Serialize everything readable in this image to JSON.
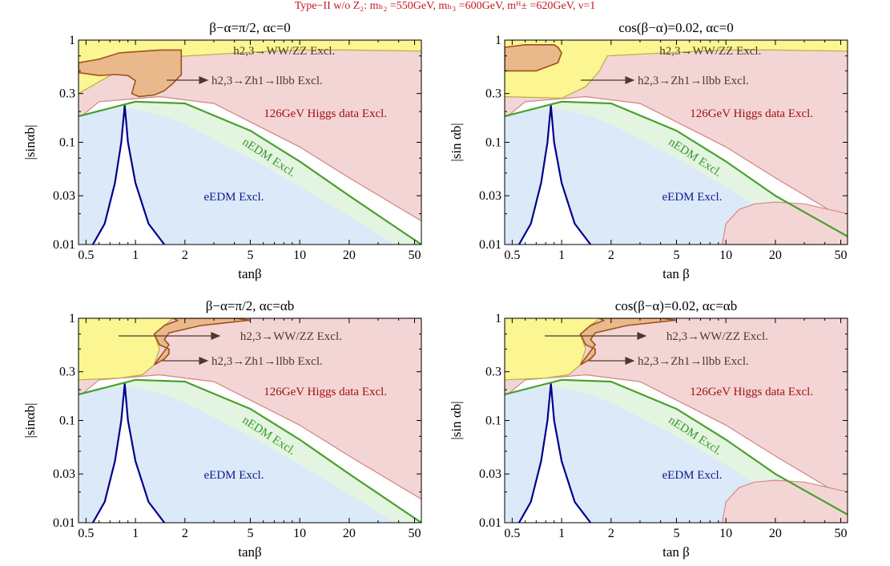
{
  "figure_title": "Type−II w/o Z₂: mₕ₂ =550GeV, mₕ₃ =600GeV, mᴴ± =620GeV, ν=1",
  "colors": {
    "eEDM_fill": "#dce9f8",
    "nEDM_fill": "#e3f5e0",
    "higgs_fill": "#f4d5d5",
    "wwzz_fill": "#fbf592",
    "zh_fill": "#e9b98b",
    "eEDM_line": "#00008c",
    "nEDM_line": "#4aa02c",
    "higgs_line": "#d28a8a",
    "zh_line": "#a0501e",
    "wwzz_line": "#b8b042",
    "eEDM_text": "#0b1a8c",
    "nEDM_text": "#3c9630",
    "higgs_text": "#a01010",
    "arrow_text": "#4b3a2a"
  },
  "chart_data": [
    {
      "type": "area",
      "title": "β−α=π/2, αc=0",
      "xlabel": "tanβ",
      "ylabel": "|sinαb|",
      "x_scale": "log",
      "y_scale": "log",
      "xlim": [
        0.45,
        55
      ],
      "ylim": [
        0.01,
        1
      ],
      "xticks": [
        "0.5",
        "1",
        "2",
        "5",
        "10",
        "20",
        "50"
      ],
      "yticks": [
        "0.01",
        "0.03",
        "0.1",
        "0.3",
        "1"
      ],
      "labels": {
        "wwzz": "h2,3→WW/ZZ Excl.",
        "zh": "h2,3→Zh1→llbb Excl.",
        "higgs": "126GeV Higgs data Excl.",
        "nedm": "nEDM Excl.",
        "eedm": "eEDM Excl."
      },
      "regions": {
        "eEDM_boundary": [
          [
            0.45,
            0.18
          ],
          [
            0.6,
            0.2
          ],
          [
            0.8,
            0.215
          ],
          [
            1.0,
            0.21
          ],
          [
            1.5,
            0.18
          ],
          [
            2,
            0.15
          ],
          [
            5,
            0.07
          ],
          [
            10,
            0.037
          ],
          [
            20,
            0.019
          ],
          [
            40,
            0.0095
          ]
        ],
        "nEDM_boundary": [
          [
            0.45,
            0.18
          ],
          [
            1,
            0.25
          ],
          [
            2,
            0.24
          ],
          [
            5,
            0.13
          ],
          [
            10,
            0.065
          ],
          [
            20,
            0.03
          ],
          [
            55,
            0.01
          ]
        ],
        "higgs_boundary": [
          [
            0.45,
            0.17
          ],
          [
            0.6,
            0.25
          ],
          [
            1.4,
            0.28
          ],
          [
            3,
            0.24
          ],
          [
            10,
            0.09
          ],
          [
            20,
            0.045
          ],
          [
            55,
            0.017
          ]
        ],
        "wwzz_boundary": [
          [
            0.45,
            0.3
          ],
          [
            0.7,
            0.45
          ],
          [
            0.8,
            0.5
          ],
          [
            0.9,
            0.52
          ],
          [
            1,
            0.53
          ],
          [
            1.5,
            0.62
          ],
          [
            1.7,
            0.68
          ],
          [
            1.8,
            0.69
          ],
          [
            5,
            0.76
          ],
          [
            10,
            0.8
          ],
          [
            20,
            0.8
          ],
          [
            55,
            0.78
          ]
        ],
        "zh_region": [
          [
            0.45,
            0.48
          ],
          [
            0.6,
            0.45
          ],
          [
            0.75,
            0.46
          ],
          [
            0.9,
            0.45
          ],
          [
            1.0,
            0.4
          ],
          [
            0.95,
            0.3
          ],
          [
            1.05,
            0.28
          ],
          [
            1.3,
            0.29
          ],
          [
            1.5,
            0.32
          ],
          [
            1.7,
            0.38
          ],
          [
            1.9,
            0.46
          ],
          [
            1.9,
            0.8
          ],
          [
            1.4,
            0.8
          ],
          [
            0.8,
            0.75
          ],
          [
            0.6,
            0.65
          ],
          [
            0.45,
            0.6
          ]
        ],
        "eEDM_excl_curve": [
          [
            0.55,
            0.01
          ],
          [
            0.65,
            0.016
          ],
          [
            0.75,
            0.04
          ],
          [
            0.82,
            0.1
          ],
          [
            0.86,
            0.23
          ],
          [
            0.9,
            0.1
          ],
          [
            1.0,
            0.04
          ],
          [
            1.2,
            0.016
          ],
          [
            1.5,
            0.01
          ]
        ]
      }
    },
    {
      "type": "area",
      "title": "cos(β−α)=0.02, αc=0",
      "xlabel": "tan β",
      "ylabel": "|sin αb|",
      "x_scale": "log",
      "y_scale": "log",
      "xlim": [
        0.45,
        55
      ],
      "ylim": [
        0.01,
        1
      ],
      "xticks": [
        "0.5",
        "1",
        "2",
        "5",
        "10",
        "20",
        "50"
      ],
      "yticks": [
        "0.01",
        "0.03",
        "0.1",
        "0.3",
        "1"
      ],
      "labels": {
        "wwzz": "h2,3→WW/ZZ Excl.",
        "zh": "h2,3→Zh1→llbb Excl.",
        "higgs": "126GeV Higgs data Excl.",
        "nedm": "nEDM Excl.",
        "eedm": "eEDM Excl."
      },
      "regions": {
        "eEDM_boundary": [
          [
            0.45,
            0.18
          ],
          [
            0.6,
            0.2
          ],
          [
            0.8,
            0.215
          ],
          [
            1.0,
            0.21
          ],
          [
            1.5,
            0.18
          ],
          [
            2,
            0.15
          ],
          [
            5,
            0.07
          ],
          [
            10,
            0.037
          ],
          [
            13,
            0.028
          ],
          [
            20,
            0.019
          ],
          [
            55,
            0.01
          ]
        ],
        "nEDM_boundary": [
          [
            0.45,
            0.18
          ],
          [
            1,
            0.25
          ],
          [
            2,
            0.24
          ],
          [
            5,
            0.13
          ],
          [
            10,
            0.065
          ],
          [
            20,
            0.03
          ],
          [
            55,
            0.012
          ]
        ],
        "higgs_boundary": [
          [
            0.45,
            0.17
          ],
          [
            0.6,
            0.25
          ],
          [
            1.4,
            0.28
          ],
          [
            3,
            0.24
          ],
          [
            10,
            0.09
          ],
          [
            20,
            0.045
          ],
          [
            55,
            0.017
          ]
        ],
        "wwzz_boundary": [
          [
            0.45,
            0.28
          ],
          [
            1,
            0.27
          ],
          [
            1.4,
            0.35
          ],
          [
            1.7,
            0.5
          ],
          [
            1.8,
            0.6
          ],
          [
            1.9,
            0.7
          ],
          [
            5,
            0.76
          ],
          [
            10,
            0.8
          ],
          [
            20,
            0.8
          ],
          [
            55,
            0.78
          ]
        ],
        "zh_region": [
          [
            0.45,
            0.5
          ],
          [
            0.7,
            0.5
          ],
          [
            0.95,
            0.6
          ],
          [
            1.0,
            0.75
          ],
          [
            0.95,
            0.85
          ],
          [
            0.9,
            0.9
          ],
          [
            0.6,
            0.9
          ],
          [
            0.45,
            0.85
          ]
        ],
        "eEDM_excl_curve": [
          [
            0.55,
            0.01
          ],
          [
            0.65,
            0.016
          ],
          [
            0.75,
            0.04
          ],
          [
            0.82,
            0.1
          ],
          [
            0.86,
            0.23
          ],
          [
            0.9,
            0.1
          ],
          [
            1.0,
            0.04
          ],
          [
            1.2,
            0.016
          ],
          [
            1.5,
            0.01
          ]
        ],
        "higgs_island": [
          [
            9.5,
            0.01
          ],
          [
            10,
            0.016
          ],
          [
            12,
            0.022
          ],
          [
            15,
            0.025
          ],
          [
            20,
            0.026
          ],
          [
            30,
            0.025
          ],
          [
            55,
            0.02
          ],
          [
            55,
            0.01
          ]
        ]
      }
    },
    {
      "type": "area",
      "title": "β−α=π/2, αc=αb",
      "xlabel": "tanβ",
      "ylabel": "|sinαb|",
      "x_scale": "log",
      "y_scale": "log",
      "xlim": [
        0.45,
        55
      ],
      "ylim": [
        0.01,
        1
      ],
      "xticks": [
        "0.5",
        "1",
        "2",
        "5",
        "10",
        "20",
        "50"
      ],
      "yticks": [
        "0.01",
        "0.03",
        "0.1",
        "0.3",
        "1"
      ],
      "labels": {
        "wwzz": "h2,3→WW/ZZ Excl.",
        "zh": "h2,3→Zh1→llbb Excl.",
        "higgs": "126GeV Higgs data Excl.",
        "nedm": "nEDM Excl.",
        "eedm": "eEDM Excl."
      },
      "regions": {
        "eEDM_boundary": [
          [
            0.45,
            0.18
          ],
          [
            0.6,
            0.2
          ],
          [
            0.8,
            0.215
          ],
          [
            1.0,
            0.21
          ],
          [
            1.5,
            0.18
          ],
          [
            2,
            0.15
          ],
          [
            5,
            0.07
          ],
          [
            10,
            0.037
          ],
          [
            20,
            0.019
          ],
          [
            40,
            0.0095
          ]
        ],
        "nEDM_boundary": [
          [
            0.45,
            0.18
          ],
          [
            1,
            0.25
          ],
          [
            2,
            0.24
          ],
          [
            5,
            0.13
          ],
          [
            10,
            0.065
          ],
          [
            20,
            0.03
          ],
          [
            55,
            0.01
          ]
        ],
        "higgs_boundary": [
          [
            0.45,
            0.17
          ],
          [
            0.6,
            0.25
          ],
          [
            1.4,
            0.28
          ],
          [
            3,
            0.24
          ],
          [
            10,
            0.09
          ],
          [
            20,
            0.045
          ],
          [
            55,
            0.017
          ]
        ],
        "wwzz_boundary": [
          [
            0.45,
            0.25
          ],
          [
            0.8,
            0.26
          ],
          [
            1.1,
            0.28
          ],
          [
            1.3,
            0.35
          ],
          [
            1.4,
            0.5
          ],
          [
            1.3,
            0.7
          ],
          [
            1.5,
            0.85
          ],
          [
            1.7,
            1
          ]
        ],
        "zh_region": [
          [
            1.3,
            0.35
          ],
          [
            1.5,
            0.4
          ],
          [
            1.6,
            0.45
          ],
          [
            1.6,
            0.5
          ],
          [
            1.4,
            0.55
          ],
          [
            1.3,
            0.7
          ],
          [
            1.5,
            0.85
          ],
          [
            1.8,
            0.95
          ],
          [
            1.7,
            1
          ],
          [
            2.5,
            1
          ],
          [
            4,
            1
          ],
          [
            5,
            0.96
          ],
          [
            2.5,
            0.85
          ],
          [
            1.6,
            0.72
          ],
          [
            1.5,
            0.62
          ],
          [
            1.6,
            0.55
          ]
        ],
        "eEDM_excl_curve": [
          [
            0.55,
            0.01
          ],
          [
            0.65,
            0.016
          ],
          [
            0.75,
            0.04
          ],
          [
            0.82,
            0.1
          ],
          [
            0.86,
            0.23
          ],
          [
            0.9,
            0.1
          ],
          [
            1.0,
            0.04
          ],
          [
            1.2,
            0.016
          ],
          [
            1.5,
            0.01
          ]
        ]
      }
    },
    {
      "type": "area",
      "title": "cos(β−α)=0.02, αc=αb",
      "xlabel": "tan β",
      "ylabel": "|sin αb|",
      "x_scale": "log",
      "y_scale": "log",
      "xlim": [
        0.45,
        55
      ],
      "ylim": [
        0.01,
        1
      ],
      "xticks": [
        "0.5",
        "1",
        "2",
        "5",
        "10",
        "20",
        "50"
      ],
      "yticks": [
        "0.01",
        "0.03",
        "0.1",
        "0.3",
        "1"
      ],
      "labels": {
        "wwzz": "h2,3→WW/ZZ Excl.",
        "zh": "h2,3→Zh1→llbb Excl.",
        "higgs": "126GeV Higgs data Excl.",
        "nedm": "nEDM Excl.",
        "eedm": "eEDM Excl."
      },
      "regions": {
        "eEDM_boundary": [
          [
            0.45,
            0.18
          ],
          [
            0.6,
            0.2
          ],
          [
            0.8,
            0.215
          ],
          [
            1.0,
            0.21
          ],
          [
            1.5,
            0.18
          ],
          [
            2,
            0.15
          ],
          [
            5,
            0.07
          ],
          [
            10,
            0.037
          ],
          [
            13,
            0.028
          ],
          [
            20,
            0.019
          ],
          [
            55,
            0.01
          ]
        ],
        "nEDM_boundary": [
          [
            0.45,
            0.18
          ],
          [
            1,
            0.25
          ],
          [
            2,
            0.24
          ],
          [
            5,
            0.13
          ],
          [
            10,
            0.065
          ],
          [
            20,
            0.03
          ],
          [
            55,
            0.012
          ]
        ],
        "higgs_boundary": [
          [
            0.45,
            0.17
          ],
          [
            0.6,
            0.25
          ],
          [
            1.4,
            0.28
          ],
          [
            3,
            0.24
          ],
          [
            10,
            0.09
          ],
          [
            20,
            0.045
          ],
          [
            55,
            0.017
          ]
        ],
        "wwzz_boundary": [
          [
            0.45,
            0.25
          ],
          [
            0.8,
            0.26
          ],
          [
            1.1,
            0.28
          ],
          [
            1.3,
            0.35
          ],
          [
            1.4,
            0.5
          ],
          [
            1.3,
            0.7
          ],
          [
            1.5,
            0.85
          ],
          [
            1.7,
            1
          ]
        ],
        "zh_region": [
          [
            1.3,
            0.35
          ],
          [
            1.5,
            0.4
          ],
          [
            1.6,
            0.45
          ],
          [
            1.6,
            0.5
          ],
          [
            1.4,
            0.55
          ],
          [
            1.3,
            0.7
          ],
          [
            1.5,
            0.85
          ],
          [
            1.8,
            0.95
          ],
          [
            1.7,
            1
          ],
          [
            2.5,
            1
          ],
          [
            4,
            1
          ],
          [
            5,
            0.96
          ],
          [
            2.5,
            0.85
          ],
          [
            1.6,
            0.72
          ],
          [
            1.5,
            0.62
          ],
          [
            1.6,
            0.55
          ]
        ],
        "eEDM_excl_curve": [
          [
            0.55,
            0.01
          ],
          [
            0.65,
            0.016
          ],
          [
            0.75,
            0.04
          ],
          [
            0.82,
            0.1
          ],
          [
            0.86,
            0.23
          ],
          [
            0.9,
            0.1
          ],
          [
            1.0,
            0.04
          ],
          [
            1.2,
            0.016
          ],
          [
            1.5,
            0.01
          ]
        ],
        "higgs_island": [
          [
            9.5,
            0.01
          ],
          [
            10,
            0.016
          ],
          [
            12,
            0.022
          ],
          [
            15,
            0.025
          ],
          [
            20,
            0.026
          ],
          [
            30,
            0.025
          ],
          [
            55,
            0.02
          ],
          [
            55,
            0.01
          ]
        ]
      }
    }
  ]
}
